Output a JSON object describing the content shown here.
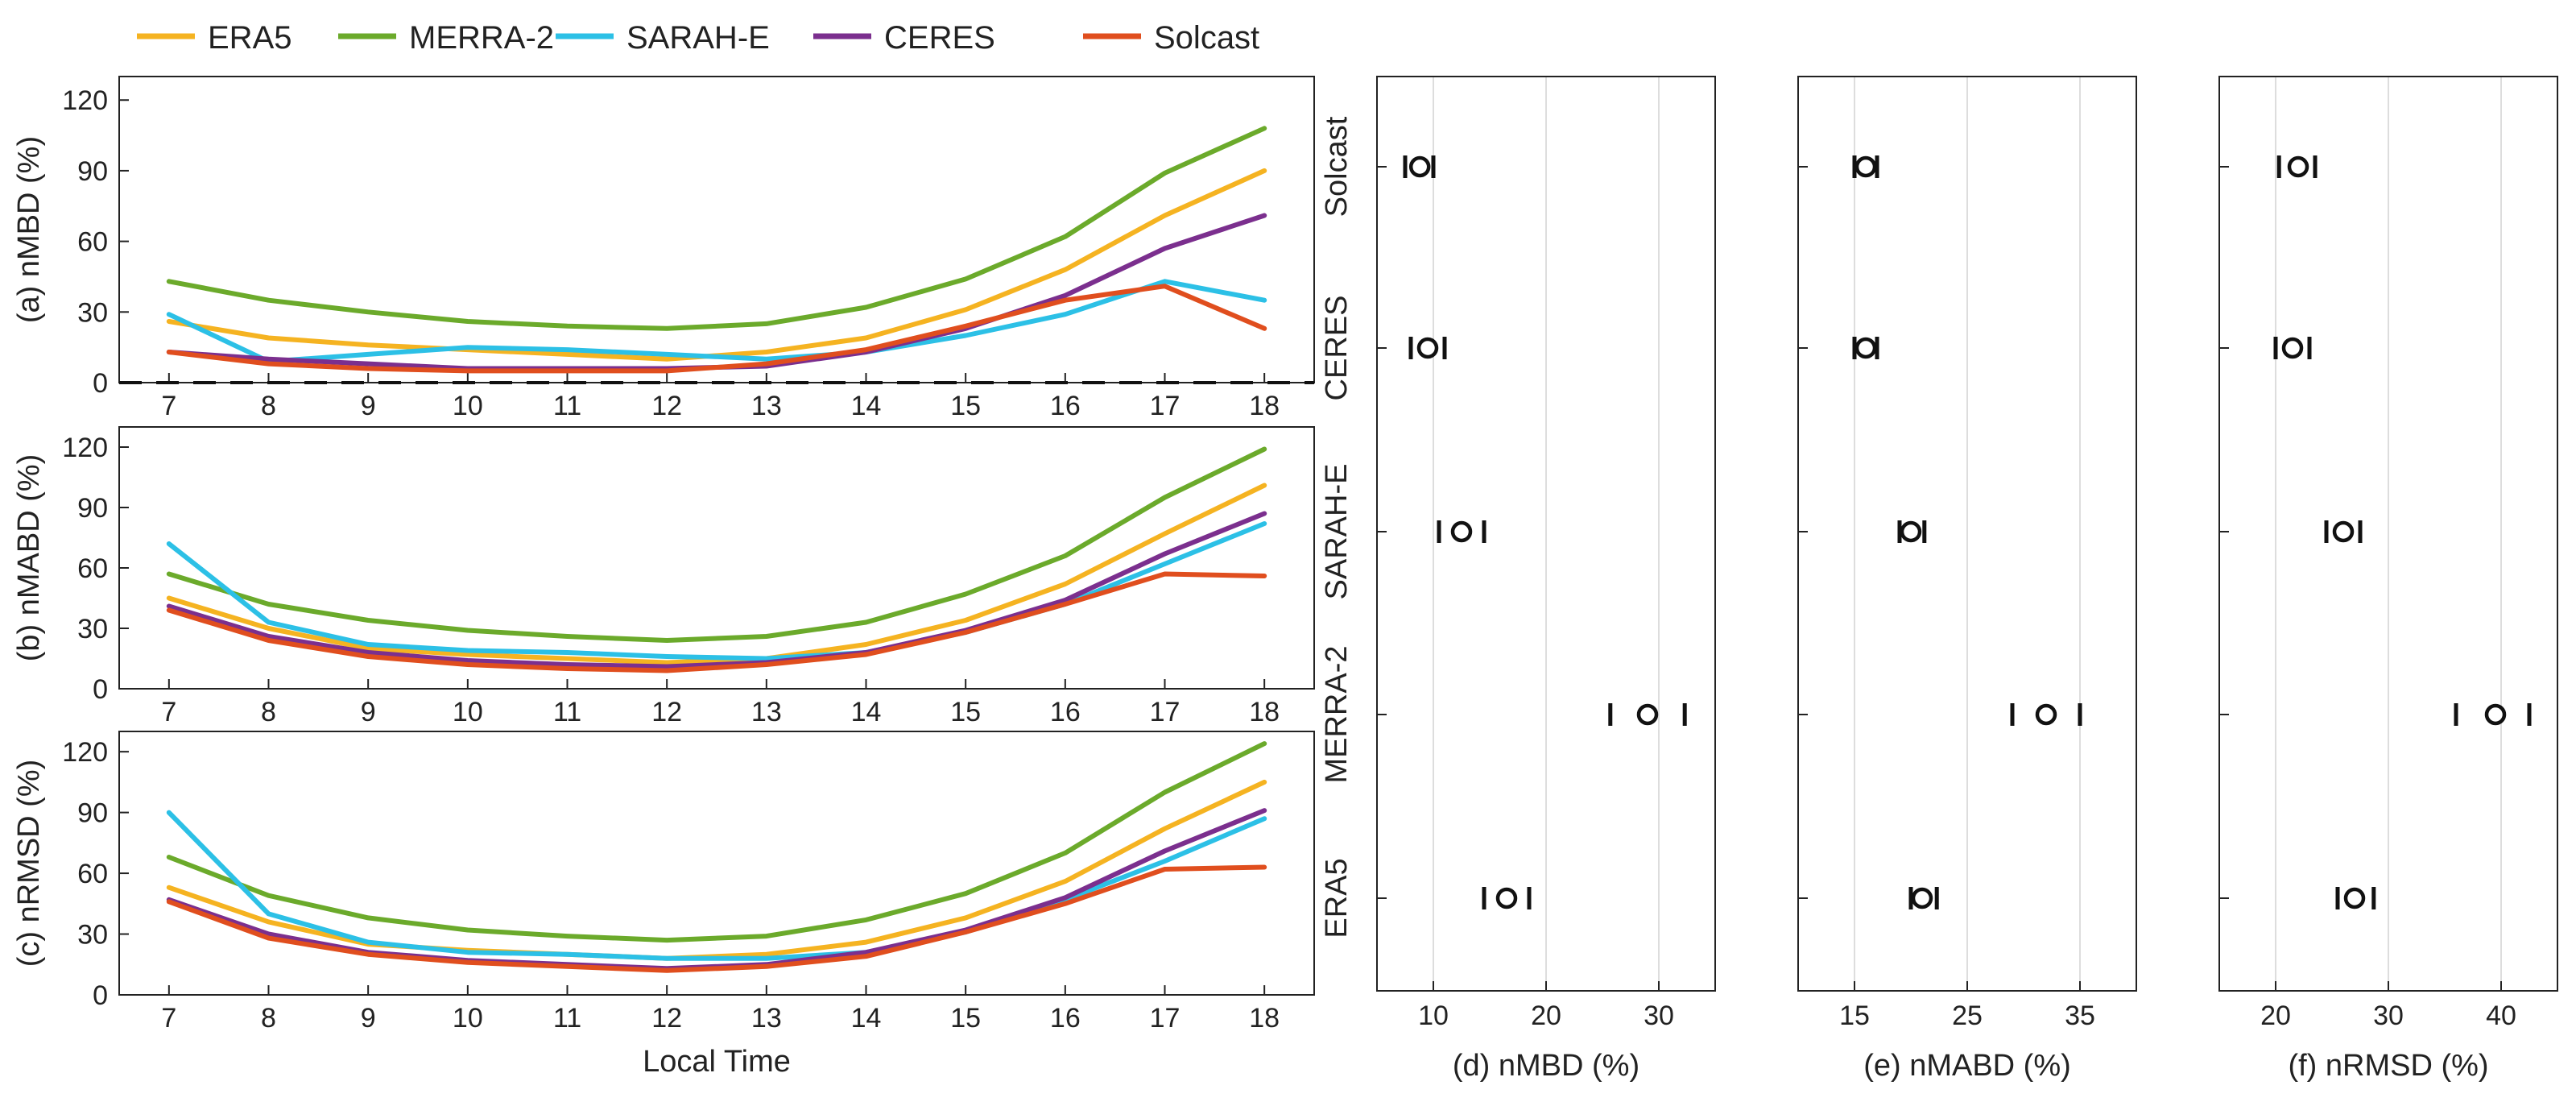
{
  "chart_data": [
    {
      "panel": "a",
      "type": "line",
      "ylabel": "(a) nMBD (%)",
      "xlabel": "",
      "x": [
        7,
        8,
        9,
        10,
        11,
        12,
        13,
        14,
        15,
        16,
        17,
        18
      ],
      "xlim": [
        6.5,
        18.5
      ],
      "ylim": [
        0,
        130
      ],
      "yticks": [
        0,
        30,
        60,
        90,
        120
      ],
      "zero_line": "dashed",
      "series": [
        {
          "name": "ERA5",
          "color": "#F5B321",
          "values": [
            26,
            19,
            16,
            14,
            12,
            10,
            13,
            19,
            31,
            48,
            71,
            90
          ]
        },
        {
          "name": "MERRA-2",
          "color": "#6BAA2B",
          "values": [
            43,
            35,
            30,
            26,
            24,
            23,
            25,
            32,
            44,
            62,
            89,
            108
          ]
        },
        {
          "name": "SARAH-E",
          "color": "#2CC0E6",
          "values": [
            29,
            9,
            12,
            15,
            14,
            12,
            10,
            13,
            20,
            29,
            43,
            35
          ]
        },
        {
          "name": "CERES",
          "color": "#7B2F8E",
          "values": [
            13,
            10,
            8,
            6,
            6,
            6,
            7,
            13,
            23,
            37,
            57,
            71
          ]
        },
        {
          "name": "Solcast",
          "color": "#E04E1E",
          "values": [
            13,
            8,
            6,
            5,
            5,
            5,
            8,
            14,
            24,
            35,
            41,
            23
          ]
        }
      ]
    },
    {
      "panel": "b",
      "type": "line",
      "ylabel": "(b) nMABD (%)",
      "xlabel": "",
      "x": [
        7,
        8,
        9,
        10,
        11,
        12,
        13,
        14,
        15,
        16,
        17,
        18
      ],
      "xlim": [
        6.5,
        18.5
      ],
      "ylim": [
        0,
        130
      ],
      "yticks": [
        0,
        30,
        60,
        90,
        120
      ],
      "series": [
        {
          "name": "ERA5",
          "color": "#F5B321",
          "values": [
            45,
            30,
            20,
            17,
            15,
            13,
            15,
            22,
            34,
            52,
            77,
            101
          ]
        },
        {
          "name": "MERRA-2",
          "color": "#6BAA2B",
          "values": [
            57,
            42,
            34,
            29,
            26,
            24,
            26,
            33,
            47,
            66,
            95,
            119
          ]
        },
        {
          "name": "SARAH-E",
          "color": "#2CC0E6",
          "values": [
            72,
            33,
            22,
            19,
            18,
            16,
            15,
            18,
            28,
            42,
            62,
            82
          ]
        },
        {
          "name": "CERES",
          "color": "#7B2F8E",
          "values": [
            41,
            26,
            18,
            14,
            12,
            11,
            13,
            18,
            29,
            44,
            67,
            87
          ]
        },
        {
          "name": "Solcast",
          "color": "#E04E1E",
          "values": [
            39,
            24,
            16,
            12,
            10,
            9,
            12,
            17,
            28,
            42,
            57,
            56
          ]
        }
      ]
    },
    {
      "panel": "c",
      "type": "line",
      "ylabel": "(c) nRMSD (%)",
      "xlabel": "Local Time",
      "x": [
        7,
        8,
        9,
        10,
        11,
        12,
        13,
        14,
        15,
        16,
        17,
        18
      ],
      "xlim": [
        6.5,
        18.5
      ],
      "ylim": [
        0,
        130
      ],
      "yticks": [
        0,
        30,
        60,
        90,
        120
      ],
      "series": [
        {
          "name": "ERA5",
          "color": "#F5B321",
          "values": [
            53,
            36,
            25,
            22,
            20,
            18,
            20,
            26,
            38,
            56,
            82,
            105
          ]
        },
        {
          "name": "MERRA-2",
          "color": "#6BAA2B",
          "values": [
            68,
            49,
            38,
            32,
            29,
            27,
            29,
            37,
            50,
            70,
            100,
            124
          ]
        },
        {
          "name": "SARAH-E",
          "color": "#2CC0E6",
          "values": [
            90,
            40,
            26,
            21,
            20,
            18,
            18,
            21,
            31,
            47,
            66,
            87
          ]
        },
        {
          "name": "CERES",
          "color": "#7B2F8E",
          "values": [
            47,
            30,
            21,
            17,
            15,
            13,
            15,
            21,
            32,
            48,
            71,
            91
          ]
        },
        {
          "name": "Solcast",
          "color": "#E04E1E",
          "values": [
            46,
            28,
            20,
            16,
            14,
            12,
            14,
            19,
            31,
            45,
            62,
            63
          ]
        }
      ]
    },
    {
      "panel": "d",
      "type": "scatter",
      "xlabel": "(d)  nMBD (%)",
      "categories": [
        "ERA5",
        "MERRA-2",
        "SARAH-E",
        "CERES",
        "Solcast"
      ],
      "xlim": [
        5,
        35
      ],
      "xticks": [
        10,
        20,
        30
      ],
      "points": [
        {
          "name": "Solcast",
          "low": 7.5,
          "mid": 8.8,
          "high": 10.0
        },
        {
          "name": "CERES",
          "low": 8.0,
          "mid": 9.5,
          "high": 11.0
        },
        {
          "name": "SARAH-E",
          "low": 10.5,
          "mid": 12.5,
          "high": 14.5
        },
        {
          "name": "MERRA-2",
          "low": 25.7,
          "mid": 29.0,
          "high": 32.3
        },
        {
          "name": "ERA5",
          "low": 14.5,
          "mid": 16.5,
          "high": 18.5
        }
      ]
    },
    {
      "panel": "e",
      "type": "scatter",
      "xlabel": "(e)  nMABD (%)",
      "categories": [
        "ERA5",
        "MERRA-2",
        "SARAH-E",
        "CERES",
        "Solcast"
      ],
      "xlim": [
        10,
        40
      ],
      "xticks": [
        15,
        25,
        35
      ],
      "points": [
        {
          "name": "Solcast",
          "low": 15.0,
          "mid": 16.0,
          "high": 17.0
        },
        {
          "name": "CERES",
          "low": 15.0,
          "mid": 16.0,
          "high": 17.0
        },
        {
          "name": "SARAH-E",
          "low": 19.0,
          "mid": 20.0,
          "high": 21.2
        },
        {
          "name": "MERRA-2",
          "low": 29.0,
          "mid": 32.0,
          "high": 35.0
        },
        {
          "name": "ERA5",
          "low": 20.0,
          "mid": 21.0,
          "high": 22.3
        }
      ]
    },
    {
      "panel": "f",
      "type": "scatter",
      "xlabel": "(f)  nRMSD (%)",
      "categories": [
        "ERA5",
        "MERRA-2",
        "SARAH-E",
        "CERES",
        "Solcast"
      ],
      "xlim": [
        15,
        45
      ],
      "xticks": [
        20,
        30,
        40
      ],
      "points": [
        {
          "name": "Solcast",
          "low": 20.3,
          "mid": 22.0,
          "high": 23.5
        },
        {
          "name": "CERES",
          "low": 20.0,
          "mid": 21.5,
          "high": 23.0
        },
        {
          "name": "SARAH-E",
          "low": 24.5,
          "mid": 26.0,
          "high": 27.5
        },
        {
          "name": "MERRA-2",
          "low": 36.0,
          "mid": 39.5,
          "high": 42.5
        },
        {
          "name": "ERA5",
          "low": 25.5,
          "mid": 27.0,
          "high": 28.7
        }
      ]
    }
  ],
  "legend": {
    "placement": "top",
    "entries": [
      {
        "name": "ERA5",
        "color": "#F5B321"
      },
      {
        "name": "MERRA-2",
        "color": "#6BAA2B"
      },
      {
        "name": "SARAH-E",
        "color": "#2CC0E6"
      },
      {
        "name": "CERES",
        "color": "#7B2F8E"
      },
      {
        "name": "Solcast",
        "color": "#E04E1E"
      }
    ]
  },
  "colors": {
    "axis": "#222222",
    "grid": "#dddddd",
    "marker": "#111111"
  }
}
